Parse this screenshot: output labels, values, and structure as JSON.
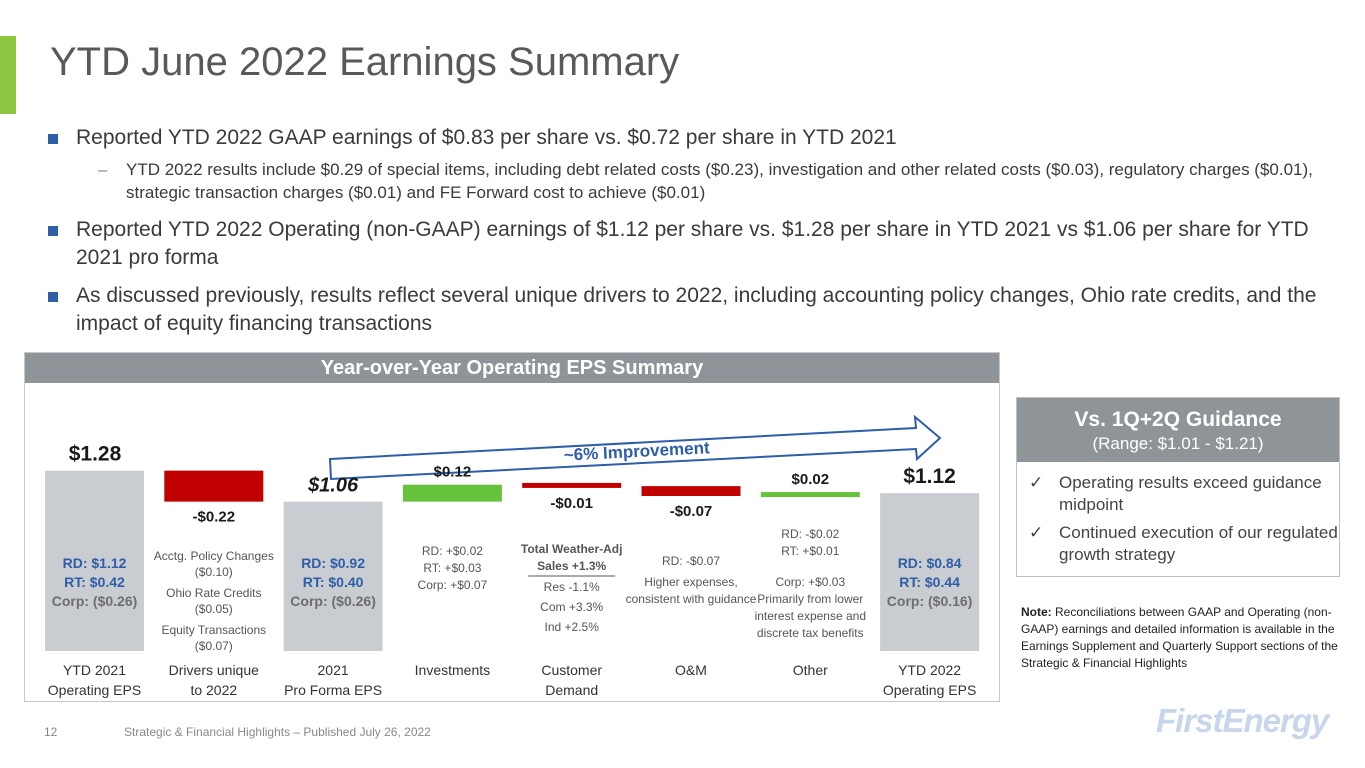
{
  "page": {
    "title": "YTD June 2022 Earnings Summary",
    "bullets": [
      {
        "text": "Reported YTD 2022 GAAP earnings of $0.83 per share vs. $0.72 per share in YTD 2021",
        "sub": "YTD 2022 results include $0.29 of special items, including debt related costs ($0.23), investigation and other related costs ($0.03), regulatory charges ($0.01), strategic transaction charges ($0.01) and FE Forward cost to achieve ($0.01)"
      },
      {
        "text": "Reported YTD 2022 Operating (non-GAAP) earnings of $1.12 per share vs. $1.28 per share in YTD 2021 vs $1.06 per share for YTD 2021 pro forma"
      },
      {
        "text": "As discussed previously, results reflect several unique drivers to 2022, including accounting policy changes, Ohio rate credits, and the impact of equity financing transactions"
      }
    ],
    "chart_header": "Year-over-Year Operating EPS Summary",
    "improvement_label": "~6% Improvement",
    "guidance": {
      "title": "Vs. 1Q+2Q Guidance",
      "range": "(Range: $1.01 - $1.21)",
      "check": "✓",
      "items": [
        "Operating results exceed guidance midpoint",
        "Continued execution of our regulated growth strategy"
      ]
    },
    "note": {
      "label": "Note:",
      "text": "Reconciliations between GAAP and Operating (non-GAAP) earnings and detailed information is available in the Earnings Supplement and Quarterly Support sections of the Strategic & Financial Highlights"
    },
    "footer": {
      "page_number": "12",
      "text": "Strategic & Financial Highlights – Published July 26, 2022"
    },
    "logo": "FirstEnergy",
    "colors": {
      "accent": "#8dc63f",
      "increase": "#66c23a",
      "decrease": "#c00000",
      "total": "#c9ccd1",
      "blue": "#2e5ea8",
      "header": "#8f9499"
    }
  },
  "chart_data": {
    "type": "waterfall",
    "title": "Year-over-Year Operating EPS Summary",
    "ylim": [
      0,
      1.32
    ],
    "steps": [
      {
        "category": [
          "YTD 2021",
          "Operating EPS"
        ],
        "type": "total",
        "value": 1.28,
        "label": "$1.28",
        "details": [
          "RD: $1.12",
          "RT: $0.42",
          "Corp: ($0.26)"
        ]
      },
      {
        "category": [
          "Drivers unique",
          "to 2022"
        ],
        "type": "delta",
        "value": -0.22,
        "label": "-$0.22",
        "details": [
          "Acctg. Policy Changes",
          "($0.10)",
          "Ohio Rate Credits",
          "($0.05)",
          "Equity Transactions",
          "($0.07)"
        ]
      },
      {
        "category": [
          "2021",
          "Pro Forma EPS"
        ],
        "type": "total",
        "value": 1.06,
        "label": "$1.06",
        "details": [
          "RD: $0.92",
          "RT: $0.40",
          "Corp: ($0.26)"
        ]
      },
      {
        "category": [
          "Investments"
        ],
        "type": "delta",
        "value": 0.12,
        "label": "$0.12",
        "details": [
          "RD: +$0.02",
          "RT: +$0.03",
          "Corp: +$0.07"
        ]
      },
      {
        "category": [
          "Customer",
          "Demand"
        ],
        "type": "delta",
        "value": -0.01,
        "label": "-$0.01",
        "details": [
          "Total Weather-Adj",
          "Sales +1.3%",
          "Res  -1.1%",
          "Com +3.3%",
          "Ind +2.5%"
        ]
      },
      {
        "category": [
          "O&M"
        ],
        "type": "delta",
        "value": -0.07,
        "label": "-$0.07",
        "details": [
          "RD: -$0.07",
          "Higher expenses,",
          "consistent with guidance"
        ]
      },
      {
        "category": [
          "Other"
        ],
        "type": "delta",
        "value": 0.02,
        "label": "$0.02",
        "details": [
          "RD: -$0.02",
          "RT: +$0.01",
          "Corp: +$0.03",
          "Primarily from lower",
          "interest expense and",
          "discrete tax benefits"
        ]
      },
      {
        "category": [
          "YTD 2022",
          "Operating EPS"
        ],
        "type": "total",
        "value": 1.12,
        "label": "$1.12",
        "details": [
          "RD: $0.84",
          "RT: $0.44",
          "Corp: ($0.16)"
        ]
      }
    ]
  }
}
